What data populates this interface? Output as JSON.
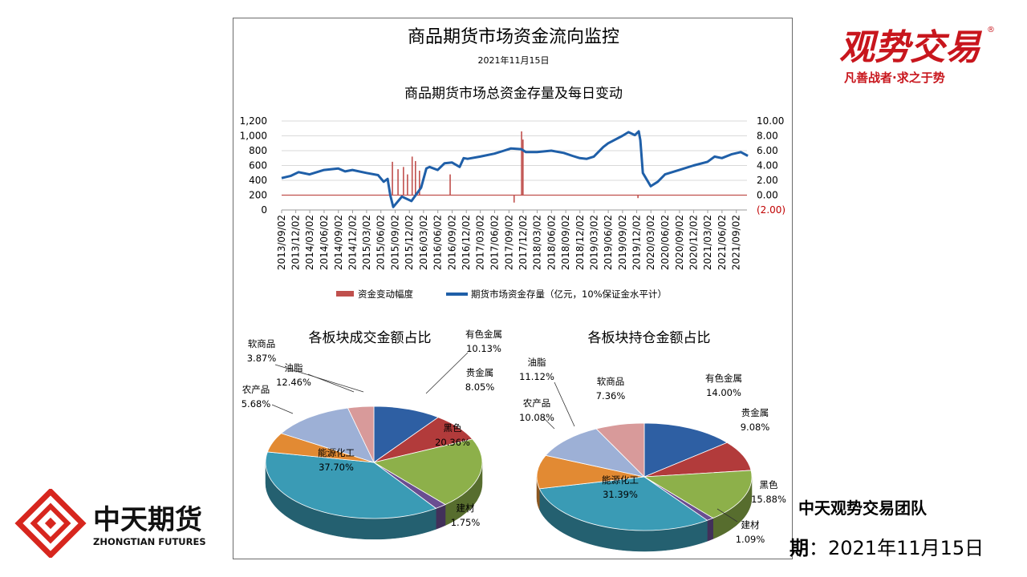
{
  "panel": {
    "title": "商品期货市场资金流向监控",
    "date": "2021年11月15日"
  },
  "chart_data": [
    {
      "type": "line",
      "title": "商品期货市场总资金存量及每日变动",
      "x_tick_labels": [
        "2013/09/02",
        "2013/12/02",
        "2014/03/02",
        "2014/06/02",
        "2014/09/02",
        "2014/12/02",
        "2015/03/02",
        "2015/06/02",
        "2015/09/02",
        "2015/12/02",
        "2016/03/02",
        "2016/06/02",
        "2016/09/02",
        "2016/12/02",
        "2017/03/02",
        "2017/06/02",
        "2017/09/02",
        "2017/12/02",
        "2018/03/02",
        "2018/06/02",
        "2018/09/02",
        "2018/12/02",
        "2019/03/02",
        "2019/06/02",
        "2019/09/02",
        "2019/12/02",
        "2020/03/02",
        "2020/06/02",
        "2020/09/02",
        "2020/12/02",
        "2021/03/02",
        "2021/06/02",
        "2021/09/02"
      ],
      "y_left": {
        "ticks": [
          "0",
          "200",
          "400",
          "600",
          "800",
          "1,000",
          "1,200"
        ],
        "ylim": [
          0,
          1200
        ]
      },
      "y_right": {
        "ticks": [
          "(2.00)",
          "0.00",
          "2.00",
          "4.00",
          "6.00",
          "8.00",
          "10.00"
        ],
        "ylim": [
          -2,
          10
        ]
      },
      "grid": true,
      "legend_position": "bottom",
      "series": [
        {
          "name": "资金变动幅度",
          "axis": "right",
          "color": "#C0504D",
          "x": [
            "2013/09/02",
            "2015/08/15",
            "2015/09/20",
            "2015/10/25",
            "2015/11/20",
            "2015/12/20",
            "2016/01/10",
            "2016/02/05",
            "2016/08/20",
            "2017/10/05",
            "2017/11/22",
            "2017/12/01",
            "2019/12/10"
          ],
          "values": [
            0.0,
            4.5,
            3.5,
            3.8,
            2.8,
            5.2,
            4.6,
            3.3,
            2.8,
            -1.0,
            8.6,
            7.5,
            -0.4
          ]
        },
        {
          "name": "期货市场资金存量（亿元，10%保证金水平计）",
          "axis": "left",
          "color": "#1F5FA8",
          "x": [
            "2013/09/02",
            "2013/11/01",
            "2013/12/20",
            "2014/03/01",
            "2014/06/01",
            "2014/09/01",
            "2014/10/15",
            "2014/12/01",
            "2015/03/01",
            "2015/05/15",
            "2015/06/20",
            "2015/07/15",
            "2015/08/01",
            "2015/08/20",
            "2015/10/15",
            "2015/12/15",
            "2016/02/15",
            "2016/03/20",
            "2016/04/10",
            "2016/06/01",
            "2016/07/15",
            "2016/09/01",
            "2016/10/20",
            "2016/11/15",
            "2016/12/10",
            "2017/03/01",
            "2017/06/01",
            "2017/08/01",
            "2017/09/15",
            "2017/11/20",
            "2017/12/20",
            "2018/03/01",
            "2018/06/01",
            "2018/08/20",
            "2018/10/15",
            "2018/12/01",
            "2019/01/15",
            "2019/03/01",
            "2019/05/01",
            "2019/06/01",
            "2019/09/01",
            "2019/10/10",
            "2019/11/20",
            "2019/12/15",
            "2019/12/25",
            "2020/01/10",
            "2020/03/01",
            "2020/04/15",
            "2020/06/01",
            "2020/09/01",
            "2020/12/01",
            "2021/03/01",
            "2021/04/15",
            "2021/06/01",
            "2021/08/01",
            "2021/10/01",
            "2021/11/15"
          ],
          "values": [
            430,
            460,
            510,
            480,
            540,
            560,
            520,
            540,
            500,
            470,
            380,
            420,
            200,
            40,
            180,
            120,
            300,
            560,
            580,
            540,
            630,
            640,
            580,
            700,
            690,
            720,
            760,
            800,
            830,
            820,
            780,
            780,
            800,
            770,
            730,
            700,
            690,
            720,
            850,
            900,
            1000,
            1050,
            1010,
            1060,
            940,
            500,
            320,
            380,
            480,
            540,
            600,
            650,
            720,
            700,
            750,
            780,
            730
          ]
        }
      ]
    },
    {
      "type": "pie",
      "title": "各板块成交金额占比",
      "categories": [
        "有色金属",
        "贵金属",
        "黑色",
        "建材",
        "能源化工",
        "农产品",
        "油脂",
        "软商品"
      ],
      "values": [
        10.13,
        8.05,
        20.36,
        1.75,
        37.7,
        5.68,
        12.46,
        3.87
      ],
      "labels": [
        "10.13%",
        "8.05%",
        "20.36%",
        "1.75%",
        "37.70%",
        "5.68%",
        "12.46%",
        "3.87%"
      ]
    },
    {
      "type": "pie",
      "title": "各板块持仓金额占比",
      "categories": [
        "有色金属",
        "贵金属",
        "黑色",
        "建材",
        "能源化工",
        "农产品",
        "油脂",
        "软商品"
      ],
      "values": [
        14.0,
        9.08,
        15.88,
        1.09,
        31.39,
        10.08,
        11.12,
        7.36
      ],
      "labels": [
        "14.00%",
        "9.08%",
        "15.88%",
        "1.09%",
        "31.39%",
        "10.08%",
        "11.12%",
        "7.36%"
      ]
    }
  ],
  "slice_colors": [
    "#2E5FA3",
    "#B23B3B",
    "#8DB04A",
    "#6A4E91",
    "#3A9BB5",
    "#E28A33",
    "#9DB0D6",
    "#D89A9A"
  ],
  "logo_right": {
    "brand": "观势交易",
    "slogan": "凡善战者·求之于势",
    "badge": "®"
  },
  "logo_left": {
    "name": "中天期货",
    "name_en": "ZHONGTIAN FUTURES"
  },
  "team": "中天观势交易团队",
  "date_label": "期",
  "date_value": "：2021年11月15日"
}
